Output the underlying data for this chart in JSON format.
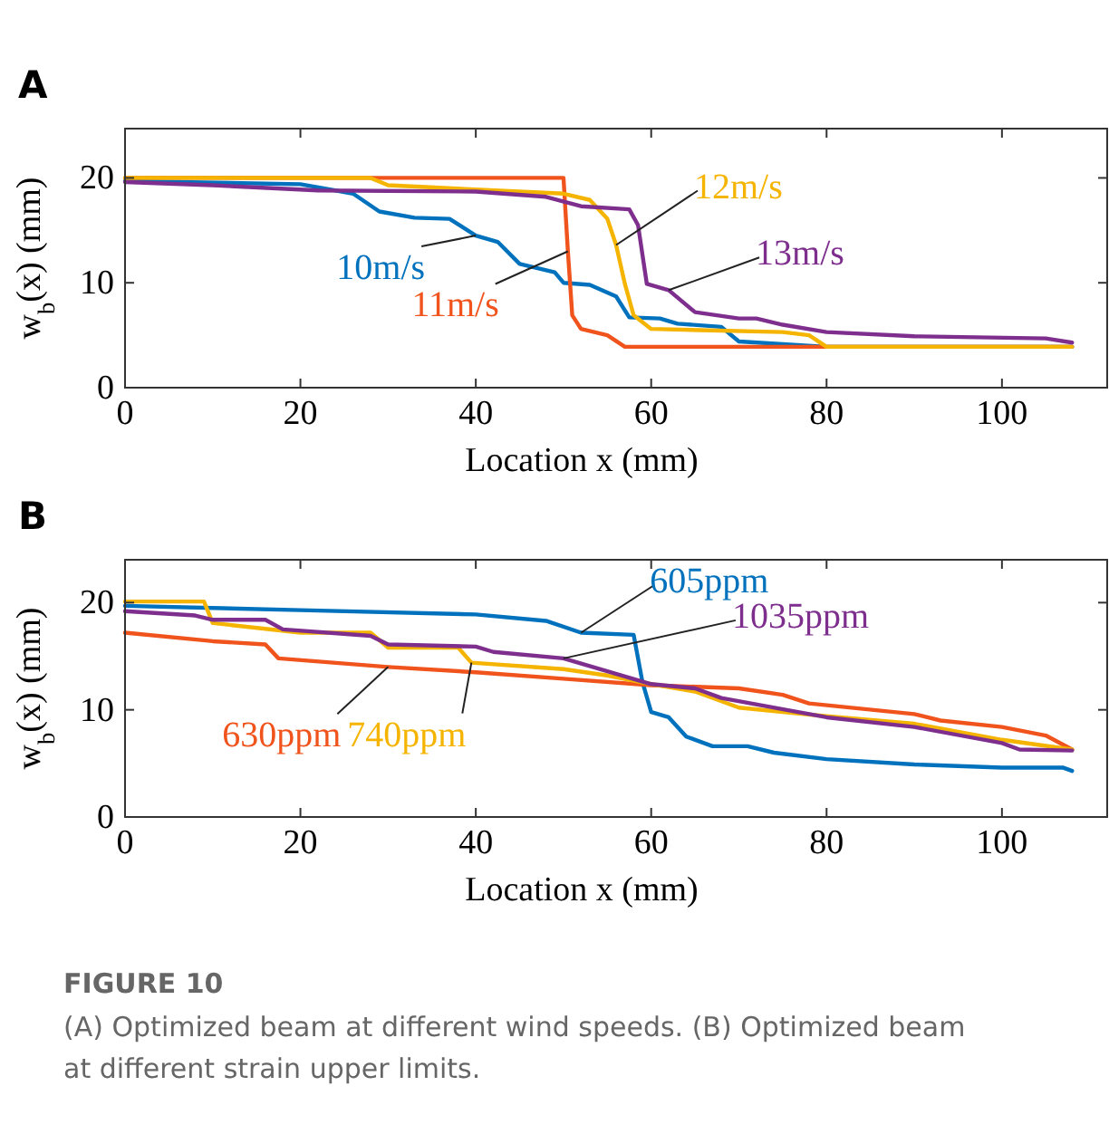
{
  "chart_data": [
    {
      "type": "line",
      "title": "A",
      "xlabel": "Location x (mm)",
      "ylabel": "w$_{b}$(x) (mm)",
      "xlim": [
        0,
        112
      ],
      "ylim": [
        0,
        24.7
      ],
      "xticks": [
        0,
        20,
        40,
        60,
        80,
        100
      ],
      "yticks": [
        0,
        10,
        20
      ],
      "grid": false,
      "line_style": "solid",
      "marker": "none",
      "series": [
        {
          "name": "10m/s",
          "color": "#0072bd",
          "x": [
            0,
            20,
            26,
            29,
            33,
            37,
            40,
            42.5,
            45,
            49,
            50,
            53,
            56,
            57.5,
            61,
            63,
            68,
            70,
            80,
            108
          ],
          "values": [
            19.7,
            19.4,
            18.5,
            16.8,
            16.2,
            16.1,
            14.5,
            13.9,
            11.8,
            11,
            10,
            9.8,
            8.7,
            6.7,
            6.6,
            6.1,
            5.8,
            4.4,
            3.9,
            3.9
          ]
        },
        {
          "name": "11m/s",
          "color": "#f0531c",
          "x": [
            0,
            50,
            50.5,
            51,
            52,
            55,
            57,
            108
          ],
          "values": [
            20,
            20,
            13,
            6.9,
            5.6,
            5,
            3.9,
            3.9
          ]
        },
        {
          "name": "12m/s",
          "color": "#f5b400",
          "x": [
            0,
            28,
            30,
            50,
            53,
            55,
            56,
            57,
            58,
            60,
            75,
            78,
            80,
            108
          ],
          "values": [
            20,
            20,
            19.3,
            18.5,
            17.9,
            16.1,
            13.6,
            9.9,
            6.9,
            5.6,
            5.3,
            5,
            3.9,
            3.9
          ]
        },
        {
          "name": "13m/s",
          "color": "#7e2f8e",
          "x": [
            0,
            10,
            22,
            40,
            48,
            52,
            57.5,
            58.5,
            59.5,
            62,
            65,
            70,
            72,
            75,
            80,
            90,
            105,
            108
          ],
          "values": [
            19.6,
            19.3,
            18.8,
            18.7,
            18.2,
            17.3,
            17,
            15.5,
            9.9,
            9.3,
            7.2,
            6.6,
            6.6,
            6,
            5.3,
            4.9,
            4.7,
            4.3
          ]
        }
      ],
      "legend": false
    },
    {
      "type": "line",
      "title": "B",
      "xlabel": "Location x (mm)",
      "ylabel": "w$_{b}$(x) (mm)",
      "xlim": [
        0,
        112
      ],
      "ylim": [
        0,
        24
      ],
      "xticks": [
        0,
        20,
        40,
        60,
        80,
        100
      ],
      "yticks": [
        0,
        10,
        20
      ],
      "grid": false,
      "line_style": "solid",
      "marker": "none",
      "series": [
        {
          "name": "605ppm",
          "color": "#0072bd",
          "x": [
            0,
            20,
            40,
            48,
            52,
            58,
            59,
            60,
            62,
            64,
            67,
            71,
            74,
            80,
            90,
            100,
            107,
            108
          ],
          "values": [
            19.7,
            19.3,
            18.9,
            18.3,
            17.2,
            17,
            12.6,
            9.8,
            9.3,
            7.5,
            6.6,
            6.6,
            6,
            5.4,
            4.9,
            4.6,
            4.6,
            4.3
          ]
        },
        {
          "name": "630ppm",
          "color": "#f0531c",
          "x": [
            0,
            10,
            16,
            17.5,
            30,
            40,
            50,
            60,
            70,
            75,
            78,
            90,
            93,
            100,
            105,
            108
          ],
          "values": [
            17.2,
            16.4,
            16.1,
            14.8,
            14,
            13.5,
            12.9,
            12.3,
            12,
            11.4,
            10.6,
            9.6,
            9,
            8.4,
            7.6,
            6.3
          ]
        },
        {
          "name": "740ppm",
          "color": "#f5b400",
          "x": [
            0,
            9,
            10,
            20,
            28,
            30,
            38,
            39.5,
            50,
            55,
            60,
            65,
            70,
            80,
            90,
            100,
            108
          ],
          "values": [
            20.1,
            20.1,
            18.1,
            17.2,
            17.2,
            15.8,
            15.8,
            14.4,
            13.8,
            13.2,
            12.4,
            11.7,
            10.2,
            9.4,
            8.7,
            7.2,
            6.3
          ]
        },
        {
          "name": "1035ppm",
          "color": "#7e2f8e",
          "x": [
            0,
            8,
            10,
            16,
            18,
            28,
            30,
            40,
            42,
            50,
            55,
            60,
            65,
            68,
            80,
            90,
            100,
            102,
            108
          ],
          "values": [
            19.2,
            18.8,
            18.4,
            18.4,
            17.5,
            16.9,
            16.1,
            15.9,
            15.4,
            14.8,
            13.6,
            12.4,
            12,
            11.1,
            9.3,
            8.4,
            6.9,
            6.3,
            6.2
          ]
        }
      ],
      "legend": false,
      "annotations": [
        "FIGURE 10",
        "(A) Optimized beam at different wind speeds. (B) Optimized beam at different strain upper limits."
      ]
    }
  ]
}
